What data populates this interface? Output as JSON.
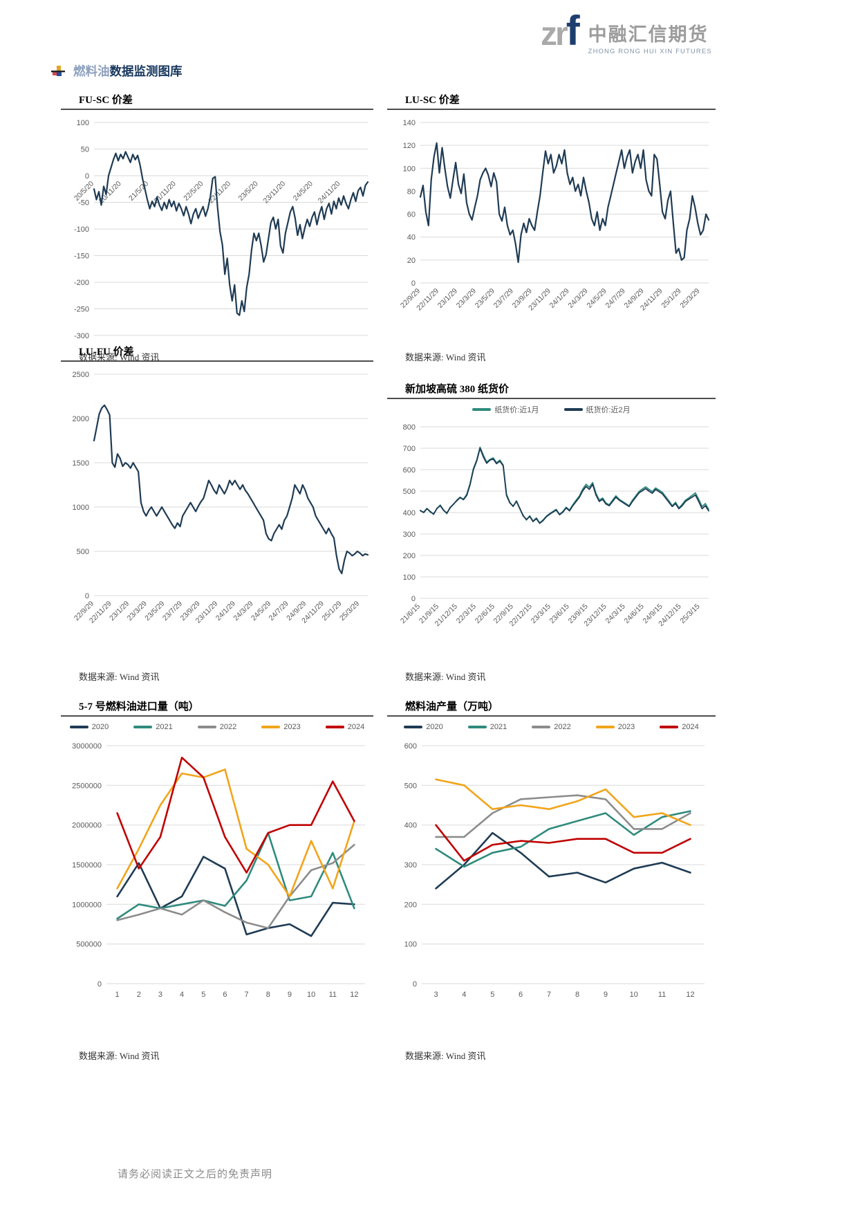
{
  "header": {
    "logo_zr": "zr",
    "logo_f": "f",
    "company": "中融汇信期货",
    "company_sub": "ZHONG RONG HUI XIN FUTURES"
  },
  "section": {
    "title_highlight": "燃料油",
    "title_rest": "数据监测图库"
  },
  "page": {
    "footer": "请务必阅读正文之后的免责声明"
  },
  "colors": {
    "navy": "#1f3b54",
    "teal": "#2e8b7d",
    "gray": "#8c8c8c",
    "gold": "#f2a41a",
    "red": "#c00000",
    "grid": "#d9d9d9",
    "axis_text": "#595959"
  },
  "chart_data": [
    {
      "type": "line",
      "title": "FU-SC 价差",
      "source": "数据来源: Wind 资讯",
      "ylim": [
        -300,
        100
      ],
      "yticks": [
        100,
        50,
        0,
        -50,
        -100,
        -150,
        -200,
        -250,
        -300
      ],
      "xticks": [
        "20/5/20",
        "20/11/20",
        "21/5/20",
        "21/11/20",
        "22/5/20",
        "22/11/20",
        "23/5/20",
        "23/11/20",
        "24/5/20",
        "24/11/20"
      ],
      "legend_position": "none",
      "grid": true,
      "series": [
        {
          "name": "FU-SC价差",
          "color": "#1f3b54",
          "width": 2.2,
          "values": [
            -25,
            -45,
            -30,
            -55,
            -20,
            -35,
            0,
            15,
            30,
            42,
            28,
            40,
            32,
            45,
            35,
            25,
            40,
            30,
            38,
            20,
            -5,
            -25,
            -45,
            -62,
            -48,
            -58,
            -40,
            -55,
            -65,
            -50,
            -62,
            -45,
            -58,
            -48,
            -66,
            -52,
            -62,
            -75,
            -58,
            -72,
            -90,
            -72,
            -62,
            -80,
            -68,
            -58,
            -76,
            -62,
            -40,
            -5,
            -2,
            -60,
            -105,
            -130,
            -185,
            -155,
            -205,
            -235,
            -205,
            -258,
            -262,
            -235,
            -255,
            -210,
            -185,
            -140,
            -108,
            -122,
            -108,
            -132,
            -162,
            -148,
            -118,
            -88,
            -78,
            -100,
            -82,
            -132,
            -145,
            -108,
            -88,
            -68,
            -58,
            -80,
            -112,
            -92,
            -118,
            -98,
            -82,
            -95,
            -78,
            -68,
            -92,
            -72,
            -58,
            -82,
            -62,
            -52,
            -72,
            -48,
            -62,
            -42,
            -55,
            -38,
            -52,
            -62,
            -45,
            -32,
            -48,
            -28,
            -22,
            -38,
            -18,
            -12
          ]
        }
      ]
    },
    {
      "type": "line",
      "title": "LU-SC 价差",
      "source": "数据来源: Wind 资讯",
      "ylim": [
        0,
        140
      ],
      "yticks": [
        140,
        120,
        100,
        80,
        60,
        40,
        20,
        0
      ],
      "xticks": [
        "22/9/29",
        "22/11/29",
        "23/1/29",
        "23/3/29",
        "23/5/29",
        "23/7/29",
        "23/9/29",
        "23/11/29",
        "24/1/29",
        "24/3/29",
        "24/5/29",
        "24/7/29",
        "24/9/29",
        "24/11/29",
        "25/1/29",
        "25/3/29"
      ],
      "legend_position": "none",
      "grid": true,
      "series": [
        {
          "name": "LU-SC价差",
          "color": "#1f3b54",
          "width": 2.2,
          "values": [
            75,
            85,
            62,
            50,
            90,
            110,
            122,
            96,
            118,
            100,
            84,
            74,
            90,
            105,
            86,
            78,
            95,
            70,
            60,
            55,
            66,
            76,
            90,
            96,
            100,
            94,
            84,
            96,
            88,
            60,
            54,
            66,
            50,
            42,
            46,
            34,
            18,
            42,
            52,
            44,
            56,
            50,
            46,
            62,
            76,
            96,
            115,
            104,
            112,
            96,
            102,
            112,
            104,
            116,
            96,
            86,
            92,
            80,
            86,
            76,
            92,
            80,
            70,
            56,
            50,
            62,
            46,
            56,
            50,
            66,
            76,
            86,
            96,
            106,
            116,
            100,
            110,
            116,
            96,
            106,
            112,
            100,
            116,
            90,
            80,
            76,
            112,
            108,
            86,
            62,
            56,
            72,
            80,
            52,
            26,
            30,
            20,
            22,
            46,
            56,
            76,
            66,
            52,
            42,
            46,
            60,
            55
          ]
        }
      ]
    },
    {
      "type": "line",
      "title": "LU-FU 价差",
      "source": "数据来源: Wind 资讯",
      "ylim": [
        0,
        2500
      ],
      "yticks": [
        2500,
        2000,
        1500,
        1000,
        500,
        0
      ],
      "xticks": [
        "22/9/29",
        "22/11/29",
        "23/1/29",
        "23/3/29",
        "23/5/29",
        "23/7/29",
        "23/9/29",
        "23/11/29",
        "24/1/29",
        "24/3/29",
        "24/5/29",
        "24/7/29",
        "24/9/29",
        "24/11/29",
        "25/1/29",
        "25/3/29"
      ],
      "legend_position": "none",
      "grid": true,
      "series": [
        {
          "name": "LU-FU价差",
          "color": "#1f3b54",
          "width": 2.2,
          "values": [
            1750,
            1900,
            2050,
            2120,
            2150,
            2100,
            2040,
            1500,
            1450,
            1600,
            1550,
            1460,
            1500,
            1480,
            1440,
            1500,
            1450,
            1400,
            1050,
            950,
            900,
            960,
            1000,
            950,
            900,
            950,
            1000,
            950,
            900,
            850,
            800,
            760,
            820,
            780,
            900,
            950,
            1000,
            1050,
            1000,
            950,
            1010,
            1060,
            1100,
            1200,
            1300,
            1250,
            1190,
            1150,
            1250,
            1200,
            1150,
            1210,
            1300,
            1250,
            1300,
            1250,
            1200,
            1250,
            1190,
            1150,
            1100,
            1050,
            1000,
            950,
            900,
            850,
            700,
            640,
            620,
            700,
            750,
            800,
            750,
            850,
            900,
            1000,
            1100,
            1250,
            1200,
            1150,
            1250,
            1190,
            1100,
            1050,
            1000,
            900,
            850,
            800,
            750,
            700,
            760,
            700,
            650,
            450,
            300,
            250,
            400,
            500,
            480,
            450,
            470,
            500,
            480,
            450,
            470,
            460
          ]
        }
      ]
    },
    {
      "type": "line",
      "title": "新加坡高硫 380 纸货价",
      "source": "数据来源: Wind 资讯",
      "ylim": [
        0,
        800
      ],
      "yticks": [
        800,
        700,
        600,
        500,
        400,
        300,
        200,
        100,
        0
      ],
      "xticks": [
        "21/6/15",
        "21/9/15",
        "21/12/15",
        "22/3/15",
        "22/6/15",
        "22/9/15",
        "22/12/15",
        "23/3/15",
        "23/6/15",
        "23/9/15",
        "23/12/15",
        "24/3/15",
        "24/6/15",
        "24/9/15",
        "24/12/15",
        "25/3/15"
      ],
      "legend_position": "top",
      "grid": true,
      "series": [
        {
          "name": "纸货价:近1月",
          "color": "#2e8b7d",
          "width": 1.8,
          "values": [
            408,
            402,
            420,
            402,
            395,
            418,
            435,
            412,
            395,
            425,
            438,
            458,
            472,
            462,
            485,
            535,
            605,
            645,
            705,
            668,
            635,
            648,
            655,
            632,
            645,
            622,
            485,
            448,
            428,
            455,
            418,
            388,
            365,
            385,
            360,
            375,
            352,
            365,
            383,
            395,
            405,
            415,
            392,
            405,
            425,
            412,
            436,
            458,
            478,
            510,
            532,
            518,
            540,
            490,
            458,
            468,
            445,
            436,
            458,
            478,
            462,
            452,
            442,
            432,
            458,
            478,
            498,
            510,
            520,
            508,
            498,
            515,
            505,
            495,
            475,
            455,
            432,
            448,
            422,
            438,
            458,
            468,
            480,
            492,
            462,
            428,
            442,
            415
          ]
        },
        {
          "name": "纸货价:近2月",
          "color": "#1f3b54",
          "width": 1.8,
          "values": [
            410,
            400,
            418,
            405,
            392,
            420,
            432,
            410,
            398,
            422,
            440,
            455,
            470,
            460,
            480,
            530,
            600,
            640,
            700,
            660,
            630,
            645,
            650,
            628,
            640,
            618,
            480,
            445,
            430,
            452,
            420,
            385,
            368,
            382,
            358,
            372,
            350,
            362,
            380,
            392,
            402,
            412,
            390,
            402,
            422,
            408,
            432,
            452,
            472,
            502,
            522,
            508,
            532,
            482,
            452,
            462,
            440,
            432,
            452,
            472,
            458,
            448,
            438,
            428,
            452,
            472,
            492,
            502,
            512,
            500,
            490,
            508,
            498,
            488,
            468,
            448,
            428,
            442,
            418,
            432,
            452,
            462,
            472,
            482,
            452,
            418,
            432,
            408
          ]
        }
      ]
    },
    {
      "type": "line",
      "title": "5-7 号燃料油进口量（吨）",
      "source": "数据来源: Wind 资讯",
      "ylim": [
        0,
        3000000
      ],
      "yticks": [
        3000000,
        2500000,
        2000000,
        1500000,
        1000000,
        500000,
        0
      ],
      "xticks": [
        "1",
        "2",
        "3",
        "4",
        "5",
        "6",
        "7",
        "8",
        "9",
        "10",
        "11",
        "12"
      ],
      "legend_position": "top",
      "grid": true,
      "series": [
        {
          "name": "2020",
          "color": "#1f3b54",
          "width": 2.6,
          "values": [
            1100000,
            1520000,
            950000,
            1100000,
            1600000,
            1450000,
            620000,
            700000,
            750000,
            600000,
            1020000,
            1000000
          ]
        },
        {
          "name": "2021",
          "color": "#2e8b7d",
          "width": 2.6,
          "values": [
            820000,
            1000000,
            950000,
            1000000,
            1050000,
            980000,
            1300000,
            1900000,
            1050000,
            1100000,
            1650000,
            950000
          ]
        },
        {
          "name": "2022",
          "color": "#8c8c8c",
          "width": 2.6,
          "values": [
            800000,
            870000,
            950000,
            870000,
            1050000,
            900000,
            770000,
            700000,
            1100000,
            1430000,
            1520000,
            1750000
          ]
        },
        {
          "name": "2023",
          "color": "#f2a41a",
          "width": 2.6,
          "values": [
            1200000,
            1700000,
            2250000,
            2650000,
            2600000,
            2700000,
            1700000,
            1500000,
            1100000,
            1800000,
            1200000,
            2050000
          ]
        },
        {
          "name": "2024",
          "color": "#c00000",
          "width": 2.6,
          "values": [
            2150000,
            1450000,
            1850000,
            2850000,
            2600000,
            1850000,
            1400000,
            1900000,
            2000000,
            2000000,
            2550000,
            2050000
          ]
        }
      ]
    },
    {
      "type": "line",
      "title": "燃料油产量（万吨）",
      "source": "数据来源: Wind 资讯",
      "ylim": [
        0,
        600
      ],
      "yticks": [
        600,
        500,
        400,
        300,
        200,
        100,
        0
      ],
      "xticks": [
        "3",
        "4",
        "5",
        "6",
        "7",
        "8",
        "9",
        "10",
        "11",
        "12"
      ],
      "legend_position": "top",
      "grid": true,
      "series": [
        {
          "name": "2020",
          "color": "#1f3b54",
          "width": 2.6,
          "values": [
            240,
            300,
            380,
            330,
            270,
            280,
            255,
            290,
            305,
            280
          ]
        },
        {
          "name": "2021",
          "color": "#2e8b7d",
          "width": 2.6,
          "values": [
            340,
            295,
            330,
            345,
            390,
            410,
            430,
            375,
            420,
            435
          ]
        },
        {
          "name": "2022",
          "color": "#8c8c8c",
          "width": 2.6,
          "values": [
            370,
            370,
            430,
            465,
            470,
            475,
            465,
            390,
            390,
            430
          ]
        },
        {
          "name": "2023",
          "color": "#f2a41a",
          "width": 2.6,
          "values": [
            515,
            500,
            440,
            450,
            440,
            460,
            490,
            420,
            430,
            400
          ]
        },
        {
          "name": "2024",
          "color": "#c00000",
          "width": 2.6,
          "values": [
            400,
            310,
            350,
            360,
            355,
            365,
            365,
            330,
            330,
            365
          ]
        }
      ]
    }
  ]
}
